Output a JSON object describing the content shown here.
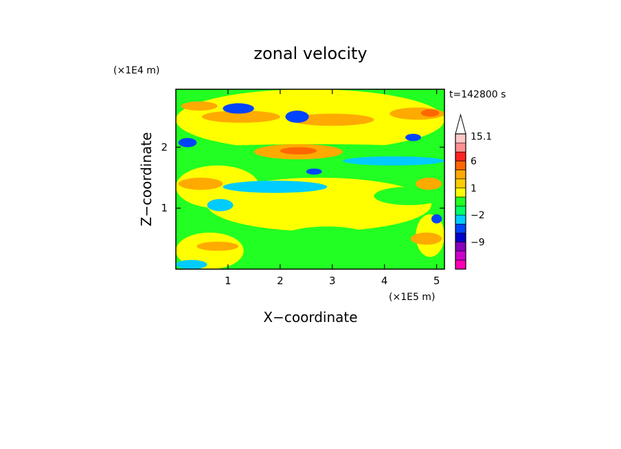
{
  "chart_data": {
    "type": "heatmap",
    "title": "zonal velocity",
    "xlabel": "X−coordinate",
    "ylabel": "Z−coordinate",
    "x_unit_label": "(×1E5 m)",
    "y_unit_label": "(×1E4 m)",
    "time_label": "t=142800 s",
    "xlim": [
      0,
      5.15
    ],
    "ylim": [
      0,
      2.95
    ],
    "x_ticks": [
      1,
      2,
      3,
      4,
      5
    ],
    "x_tick_labels": [
      "1",
      "2",
      "3",
      "4",
      "5"
    ],
    "y_ticks": [
      1,
      2
    ],
    "y_tick_labels": [
      "1",
      "2"
    ],
    "colorbar": {
      "levels": [
        -15,
        -12,
        -9,
        -6,
        -3,
        -2,
        -1,
        0,
        1,
        2,
        3,
        6,
        9,
        12,
        15.1
      ],
      "colors": [
        "#ff00b4",
        "#cc00cc",
        "#8800bb",
        "#0000cc",
        "#0044ff",
        "#00ccff",
        "#00ff66",
        "#22ff22",
        "#ffff00",
        "#ffcc00",
        "#ffaa00",
        "#ff6600",
        "#ff2222",
        "#ff9090",
        "#ffc8c8"
      ],
      "labels": [
        {
          "value": 15.1,
          "text": "15.1"
        },
        {
          "value": 6,
          "text": "6"
        },
        {
          "value": 1,
          "text": "1"
        },
        {
          "value": -2,
          "text": "−2"
        },
        {
          "value": -9,
          "text": "−9"
        }
      ],
      "extend_top_color": "#ffffff"
    },
    "background_color": "#22ff22",
    "field_regions": [
      {
        "color": "#ffff00",
        "x": [
          0,
          5.15
        ],
        "y": [
          1.95,
          2.95
        ]
      },
      {
        "color": "#ffff00",
        "x": [
          0.6,
          4.9
        ],
        "y": [
          0.62,
          1.5
        ]
      },
      {
        "color": "#ffff00",
        "x": [
          0,
          1.6
        ],
        "y": [
          1.0,
          1.7
        ]
      },
      {
        "color": "#ffff00",
        "x": [
          0,
          1.3
        ],
        "y": [
          0.0,
          0.6
        ]
      },
      {
        "color": "#ffff00",
        "x": [
          4.6,
          5.15
        ],
        "y": [
          0.2,
          0.9
        ]
      },
      {
        "color": "#00ccff",
        "x": [
          0.9,
          2.9
        ],
        "y": [
          1.25,
          1.45
        ]
      },
      {
        "color": "#00ccff",
        "x": [
          3.2,
          5.15
        ],
        "y": [
          1.7,
          1.85
        ]
      },
      {
        "color": "#00ccff",
        "x": [
          0.6,
          1.1
        ],
        "y": [
          0.95,
          1.15
        ]
      },
      {
        "color": "#00ccff",
        "x": [
          0,
          0.6
        ],
        "y": [
          0.0,
          0.15
        ]
      },
      {
        "color": "#22ff22",
        "x": [
          1.8,
          4.0
        ],
        "y": [
          0.05,
          0.7
        ]
      },
      {
        "color": "#22ff22",
        "x": [
          0.2,
          5.15
        ],
        "y": [
          1.85,
          2.05
        ]
      },
      {
        "color": "#22ff22",
        "x": [
          3.8,
          5.15
        ],
        "y": [
          1.05,
          1.35
        ]
      },
      {
        "color": "#ffaa00",
        "x": [
          0.5,
          2.0
        ],
        "y": [
          2.4,
          2.6
        ]
      },
      {
        "color": "#ffaa00",
        "x": [
          2.2,
          3.8
        ],
        "y": [
          2.35,
          2.55
        ]
      },
      {
        "color": "#ffaa00",
        "x": [
          4.1,
          5.15
        ],
        "y": [
          2.45,
          2.65
        ]
      },
      {
        "color": "#ffaa00",
        "x": [
          1.5,
          3.2
        ],
        "y": [
          1.8,
          2.05
        ]
      },
      {
        "color": "#ffaa00",
        "x": [
          0.05,
          0.9
        ],
        "y": [
          1.3,
          1.5
        ]
      },
      {
        "color": "#ffaa00",
        "x": [
          0.1,
          0.8
        ],
        "y": [
          2.6,
          2.75
        ]
      },
      {
        "color": "#ffaa00",
        "x": [
          0.4,
          1.2
        ],
        "y": [
          0.3,
          0.45
        ]
      },
      {
        "color": "#ffaa00",
        "x": [
          4.5,
          5.1
        ],
        "y": [
          0.4,
          0.6
        ]
      },
      {
        "color": "#ffaa00",
        "x": [
          4.6,
          5.1
        ],
        "y": [
          1.3,
          1.5
        ]
      },
      {
        "color": "#ff6600",
        "x": [
          4.7,
          5.05
        ],
        "y": [
          2.5,
          2.62
        ]
      },
      {
        "color": "#ff6600",
        "x": [
          2.0,
          2.7
        ],
        "y": [
          1.88,
          2.0
        ]
      },
      {
        "color": "#0044ff",
        "x": [
          0.9,
          1.5
        ],
        "y": [
          2.55,
          2.72
        ]
      },
      {
        "color": "#0044ff",
        "x": [
          2.1,
          2.55
        ],
        "y": [
          2.4,
          2.6
        ]
      },
      {
        "color": "#0044ff",
        "x": [
          0.05,
          0.4
        ],
        "y": [
          2.0,
          2.15
        ]
      },
      {
        "color": "#0044ff",
        "x": [
          4.4,
          4.7
        ],
        "y": [
          2.1,
          2.22
        ]
      },
      {
        "color": "#0044ff",
        "x": [
          2.5,
          2.8
        ],
        "y": [
          1.55,
          1.65
        ]
      },
      {
        "color": "#0044ff",
        "x": [
          4.9,
          5.1
        ],
        "y": [
          0.75,
          0.9
        ]
      }
    ]
  }
}
